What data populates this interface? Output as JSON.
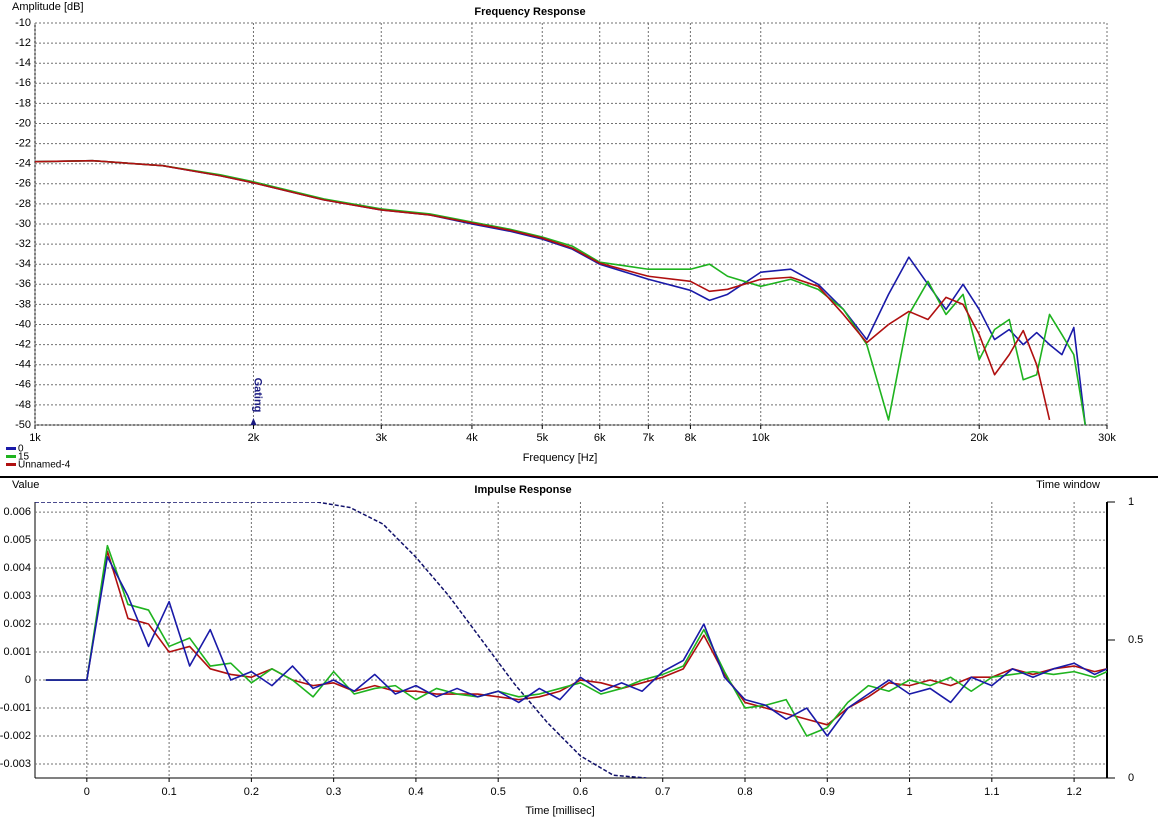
{
  "chart_data": [
    {
      "type": "line",
      "title": "Frequency Response",
      "ylabel": "Amplitude [dB]",
      "xlabel": "Frequency [Hz]",
      "xscale": "log",
      "grid": true,
      "legend": "bottom-left",
      "xlim": [
        1000,
        30000
      ],
      "ylim": [
        -50,
        -10
      ],
      "xticks": [
        {
          "value": 1000,
          "label": "1k"
        },
        {
          "value": 2000,
          "label": "2k"
        },
        {
          "value": 3000,
          "label": "3k"
        },
        {
          "value": 4000,
          "label": "4k"
        },
        {
          "value": 5000,
          "label": "5k"
        },
        {
          "value": 6000,
          "label": "6k"
        },
        {
          "value": 7000,
          "label": "7k"
        },
        {
          "value": 8000,
          "label": "8k"
        },
        {
          "value": 10000,
          "label": "10k"
        },
        {
          "value": 20000,
          "label": "20k"
        },
        {
          "value": 30000,
          "label": "30k"
        }
      ],
      "yticks": [
        -10,
        -12,
        -14,
        -16,
        -18,
        -20,
        -22,
        -24,
        -26,
        -28,
        -30,
        -32,
        -34,
        -36,
        -38,
        -40,
        -42,
        -44,
        -46,
        -48,
        -50
      ],
      "annotations": [
        {
          "text": "Gating",
          "x": 2000
        }
      ],
      "x": [
        1000,
        1200,
        1500,
        1800,
        2000,
        2500,
        3000,
        3500,
        4000,
        4500,
        5000,
        5500,
        6000,
        7000,
        8000,
        8500,
        9000,
        10000,
        11000,
        12000,
        13000,
        14000,
        15000,
        16000,
        17000,
        18000,
        19000,
        20000,
        21000,
        22000,
        23000,
        24000,
        25000,
        26000,
        27000,
        28000
      ],
      "series": [
        {
          "name": "0",
          "color": "#1a1aa8",
          "values": [
            -23.8,
            -23.7,
            -24.2,
            -25.2,
            -25.9,
            -27.6,
            -28.6,
            -29.1,
            -30.0,
            -30.7,
            -31.5,
            -32.5,
            -34.0,
            -35.5,
            -36.6,
            -37.6,
            -37.0,
            -34.8,
            -34.5,
            -36.0,
            -38.5,
            -41.5,
            -37,
            -33.3,
            -36,
            -38.5,
            -36,
            -38.5,
            -41.5,
            -40.5,
            -42,
            -40.8,
            -42,
            -43,
            -40.3,
            -50
          ]
        },
        {
          "name": "15",
          "color": "#1fb31f",
          "values": [
            -23.8,
            -23.7,
            -24.2,
            -25.1,
            -25.8,
            -27.5,
            -28.5,
            -29.0,
            -29.8,
            -30.5,
            -31.3,
            -32.2,
            -33.8,
            -34.5,
            -34.5,
            -34.0,
            -35.2,
            -36.2,
            -35.5,
            -36.5,
            -38.5,
            -42,
            -49.5,
            -39,
            -35.7,
            -39,
            -37,
            -43.5,
            -40.5,
            -39.5,
            -45.5,
            -45,
            -39,
            -41,
            -43,
            -50
          ]
        },
        {
          "name": "Unnamed-4",
          "color": "#b01010",
          "values": [
            -23.8,
            -23.7,
            -24.2,
            -25.2,
            -25.9,
            -27.6,
            -28.6,
            -29.1,
            -29.9,
            -30.6,
            -31.4,
            -32.4,
            -33.9,
            -35.2,
            -35.7,
            -36.7,
            -36.5,
            -35.5,
            -35.3,
            -36.2,
            -39,
            -41.8,
            -40,
            -38.7,
            -39.5,
            -37.3,
            -38,
            -41,
            -45,
            -43,
            -40.6,
            -44,
            -49.5,
            null,
            null,
            null
          ]
        }
      ]
    },
    {
      "type": "line",
      "title": "Impulse Response",
      "ylabel": "Value",
      "xlabel": "Time [millisec]",
      "y2label": "Time window",
      "grid": true,
      "xlim": [
        -0.063,
        1.24
      ],
      "ylim": [
        -0.0035,
        0.00636
      ],
      "y2lim": [
        0,
        1
      ],
      "xticks": [
        0,
        0.1,
        0.2,
        0.3,
        0.4,
        0.5,
        0.6,
        0.7,
        0.8,
        0.9,
        1,
        1.1,
        1.2
      ],
      "yticks": [
        0.006,
        0.005,
        0.004,
        0.003,
        0.002,
        0.001,
        0,
        -0.001,
        -0.002,
        -0.003
      ],
      "y2ticks": [
        1,
        0.5,
        0
      ],
      "x": [
        -0.05,
        -0.025,
        0,
        0.025,
        0.05,
        0.075,
        0.1,
        0.125,
        0.15,
        0.175,
        0.2,
        0.225,
        0.25,
        0.275,
        0.3,
        0.325,
        0.35,
        0.375,
        0.4,
        0.425,
        0.45,
        0.475,
        0.5,
        0.525,
        0.55,
        0.575,
        0.6,
        0.625,
        0.65,
        0.675,
        0.7,
        0.725,
        0.75,
        0.775,
        0.8,
        0.825,
        0.85,
        0.875,
        0.9,
        0.925,
        0.95,
        0.975,
        1,
        1.025,
        1.05,
        1.075,
        1.1,
        1.125,
        1.15,
        1.175,
        1.2,
        1.225,
        1.24
      ],
      "series": [
        {
          "color": "#b01010",
          "values": [
            0,
            0,
            0,
            0.0046,
            0.0022,
            0.002,
            0.001,
            0.0012,
            0.0004,
            0.0002,
            0.0001,
            0.0004,
            0,
            -0.0002,
            -0.0001,
            -0.0004,
            -0.0002,
            -0.0004,
            -0.0004,
            -0.0005,
            -0.0005,
            -0.0005,
            -0.0006,
            -0.0007,
            -0.0006,
            -0.0004,
            0,
            -0.0001,
            -0.0003,
            -0.0001,
            0.0001,
            0.0004,
            0.0016,
            0.0002,
            -0.0008,
            -0.001,
            -0.0012,
            -0.0014,
            -0.0016,
            -0.001,
            -0.0006,
            -0.0001,
            -0.0002,
            0,
            -0.0002,
            0.0001,
            0.0001,
            0.0004,
            0.0002,
            0.0004,
            0.0005,
            0.0003,
            0.0004
          ]
        },
        {
          "color": "#1fb31f",
          "values": [
            0,
            0,
            0,
            0.0048,
            0.0027,
            0.0025,
            0.0012,
            0.0015,
            0.0005,
            0.0006,
            -0.0001,
            0.0004,
            0,
            -0.0006,
            0.0003,
            -0.0005,
            -0.0003,
            -0.0002,
            -0.0007,
            -0.0003,
            -0.0005,
            -0.0006,
            -0.0004,
            -0.0006,
            -0.0005,
            -0.0003,
            -0.0001,
            -0.0005,
            -0.0003,
            0,
            0.0002,
            0.0005,
            0.0018,
            0.0003,
            -0.001,
            -0.0009,
            -0.0007,
            -0.002,
            -0.0017,
            -0.0008,
            -0.0002,
            -0.0004,
            0,
            -0.0002,
            0.0001,
            -0.0004,
            0.0001,
            0.0002,
            0.0003,
            0.0002,
            0.0003,
            0.0001,
            0.0003
          ]
        },
        {
          "color": "#1a1aa8",
          "values": [
            0,
            0,
            0,
            0.0044,
            0.003,
            0.0012,
            0.0028,
            0.0005,
            0.0018,
            0,
            0.0003,
            -0.0002,
            0.0005,
            -0.0003,
            0,
            -0.0004,
            0.0002,
            -0.0005,
            -0.0002,
            -0.0006,
            -0.0003,
            -0.0006,
            -0.0004,
            -0.0008,
            -0.0003,
            -0.0007,
            0.0001,
            -0.0004,
            -0.0001,
            -0.0004,
            0.0003,
            0.0007,
            0.002,
            0.0001,
            -0.0007,
            -0.0009,
            -0.0014,
            -0.001,
            -0.002,
            -0.001,
            -0.0005,
            0,
            -0.0005,
            -0.0003,
            -0.0008,
            0.0001,
            -0.0002,
            0.0004,
            0.0001,
            0.0004,
            0.0006,
            0.0002,
            0.0004
          ]
        },
        {
          "color": "#10106a",
          "axis": "y2",
          "dashed": true,
          "x": [
            -0.063,
            0.28,
            0.32,
            0.36,
            0.4,
            0.44,
            0.48,
            0.52,
            0.56,
            0.6,
            0.64,
            0.68
          ],
          "values": [
            1,
            1,
            0.98,
            0.92,
            0.8,
            0.66,
            0.5,
            0.34,
            0.2,
            0.08,
            0.01,
            0
          ]
        }
      ]
    }
  ]
}
